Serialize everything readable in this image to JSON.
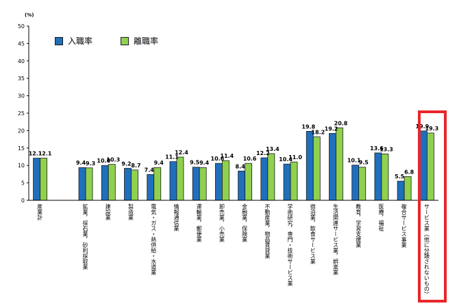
{
  "chart_data": {
    "type": "bar",
    "unit_label": "(%)",
    "ylim": [
      0,
      50
    ],
    "yticks": [
      0,
      5,
      10,
      15,
      20,
      25,
      30,
      35,
      40,
      45,
      50
    ],
    "categories": [
      "産業計",
      "",
      "鉱業，採石業，砂利採取業",
      "建設業",
      "製造業",
      "電気・ガス・熱供給・水道業",
      "情報通信業",
      "運輸業，郵便業",
      "卸売業，小売業",
      "金融業，保険業",
      "不動産業，物品賃貸業",
      "学術研究，専門・技術サービス業",
      "宿泊業，飲食サービス業",
      "生活関連サービス業，娯楽業",
      "教育，学習支援業",
      "医療，福祉",
      "複合サービス事業",
      "サービス業（他に分類されないもの）"
    ],
    "series": [
      {
        "name": "入職率",
        "color": "#1f6fbd",
        "values": [
          12.1,
          null,
          9.4,
          10.0,
          9.2,
          7.4,
          11.1,
          9.5,
          10.6,
          8.4,
          12.2,
          10.4,
          19.8,
          19.2,
          10.1,
          13.6,
          5.5,
          19.9
        ],
        "labels": [
          "12.1",
          "",
          "9.4",
          "10.0",
          "9.2",
          "7.4",
          "11.1",
          "9.5",
          "10.6",
          "8.4",
          "12.2",
          "10.4",
          "19.8",
          "19.2",
          "10.1",
          "13.6",
          "5.5",
          "19.9"
        ]
      },
      {
        "name": "離職率",
        "color": "#8fd14f",
        "values": [
          12.1,
          null,
          9.3,
          10.3,
          8.7,
          9.4,
          12.4,
          9.4,
          11.4,
          10.6,
          13.4,
          11.0,
          18.2,
          20.8,
          9.5,
          13.3,
          6.8,
          19.3
        ],
        "labels": [
          "12.1",
          "",
          "9.3",
          "10.3",
          "8.7",
          "9.4",
          "12.4",
          "9.4",
          "11.4",
          "10.6",
          "13.4",
          "11.0",
          "18.2",
          "20.8",
          "9.5",
          "13.3",
          "6.8",
          "19.3"
        ]
      }
    ],
    "highlighted_category": "サービス業（他に分類されないもの）"
  },
  "legend": {
    "items": [
      {
        "label": "入職率",
        "color": "#1f6fbd"
      },
      {
        "label": "離職率",
        "color": "#8fd14f"
      }
    ]
  },
  "colors": {
    "highlight": "#e8262b",
    "bar_outline": "#1a1a1a"
  }
}
